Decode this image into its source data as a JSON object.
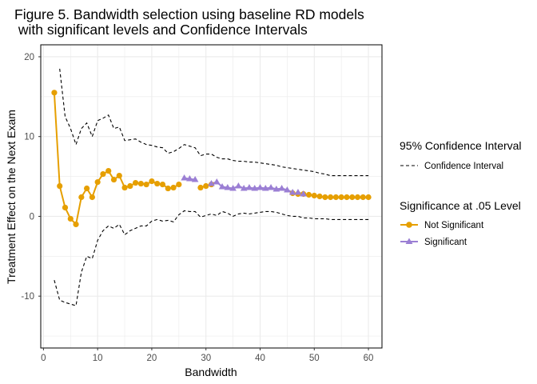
{
  "chart_data": {
    "type": "line",
    "title_line1": "Figure 5. Bandwidth selection using baseline RD models",
    "title_line2": " with significant levels and Confidence Intervals",
    "xlabel": "Bandwidth",
    "ylabel": "Treatment Effect on the Next Exam",
    "xlim": [
      -0.5,
      62.5
    ],
    "ylim": [
      -16.5,
      21.5
    ],
    "x_ticks": [
      0,
      10,
      20,
      30,
      40,
      50,
      60
    ],
    "y_ticks": [
      -10,
      0,
      10,
      20
    ],
    "grid": true,
    "legend_position": "right",
    "legend": {
      "ci_title": "95% Confidence Interval",
      "ci_label": "Confidence Interval",
      "sig_title": "Significance at .05 Level",
      "not_sig_label": "Not Significant",
      "sig_label": "Significant"
    },
    "colors": {
      "not_significant": "#E69F00",
      "significant": "#9B7FD4",
      "ci": "#000000",
      "grid": "#EBEBEB"
    },
    "ci_upper": {
      "x": [
        3,
        4,
        5,
        6,
        7,
        8,
        9,
        10,
        11,
        12,
        13,
        14,
        15,
        16,
        17,
        18,
        19,
        20,
        21,
        22,
        23,
        24,
        25,
        26,
        27,
        28,
        29,
        30,
        31,
        32,
        33,
        34,
        35,
        36,
        37,
        38,
        39,
        40,
        41,
        42,
        43,
        44,
        45,
        46,
        47,
        48,
        49,
        50,
        51,
        52,
        53,
        54,
        55,
        56,
        57,
        58,
        59,
        60
      ],
      "y": [
        18.5,
        12.5,
        11.0,
        9.0,
        11.0,
        11.7,
        10.0,
        12.0,
        12.3,
        12.7,
        11.0,
        11.2,
        9.5,
        9.6,
        9.7,
        9.3,
        9.0,
        8.9,
        8.7,
        8.6,
        7.9,
        8.1,
        8.5,
        9.0,
        8.8,
        8.6,
        7.6,
        7.8,
        7.8,
        7.4,
        7.2,
        7.2,
        7.0,
        6.9,
        6.9,
        6.8,
        6.8,
        6.7,
        6.6,
        6.5,
        6.4,
        6.2,
        6.1,
        6.0,
        5.9,
        5.8,
        5.7,
        5.6,
        5.4,
        5.3,
        5.1,
        5.1,
        5.1,
        5.1,
        5.1,
        5.1,
        5.1,
        5.1
      ]
    },
    "ci_lower": {
      "x": [
        2,
        3,
        4,
        5,
        6,
        7,
        8,
        9,
        10,
        11,
        12,
        13,
        14,
        15,
        16,
        17,
        18,
        19,
        20,
        21,
        22,
        23,
        24,
        25,
        26,
        27,
        28,
        29,
        30,
        31,
        32,
        33,
        34,
        35,
        36,
        37,
        38,
        39,
        40,
        41,
        42,
        43,
        44,
        45,
        46,
        47,
        48,
        49,
        50,
        51,
        52,
        53,
        54,
        55,
        56,
        57,
        58,
        59,
        60
      ],
      "y": [
        -8.0,
        -10.5,
        -10.8,
        -11.0,
        -11.2,
        -7.0,
        -5.0,
        -5.3,
        -3.0,
        -1.8,
        -1.2,
        -1.5,
        -1.0,
        -2.3,
        -1.8,
        -1.5,
        -1.2,
        -1.2,
        -0.6,
        -0.4,
        -0.6,
        -0.5,
        -0.7,
        0.2,
        0.7,
        0.6,
        0.6,
        -0.1,
        0.1,
        0.3,
        0.1,
        0.6,
        0.4,
        0.0,
        0.3,
        0.4,
        0.3,
        0.4,
        0.5,
        0.6,
        0.6,
        0.5,
        0.3,
        0.1,
        0.0,
        0.0,
        -0.2,
        -0.2,
        -0.3,
        -0.3,
        -0.3,
        -0.4,
        -0.4,
        -0.4,
        -0.4,
        -0.4,
        -0.4,
        -0.4,
        -0.4
      ]
    },
    "not_significant_segments": [
      {
        "x": [
          2,
          3,
          4,
          5,
          6,
          7,
          8,
          9,
          10,
          11,
          12,
          13,
          14,
          15,
          16,
          17,
          18,
          19,
          20,
          21,
          22,
          23,
          24,
          25
        ],
        "y": [
          15.5,
          3.8,
          1.1,
          -0.3,
          -1.0,
          2.4,
          3.5,
          2.4,
          4.3,
          5.3,
          5.7,
          4.6,
          5.1,
          3.6,
          3.8,
          4.2,
          4.1,
          4.0,
          4.4,
          4.1,
          4.0,
          3.5,
          3.6,
          4.0
        ]
      },
      {
        "x": [
          29,
          30,
          31
        ],
        "y": [
          3.6,
          3.8,
          4.0
        ]
      },
      {
        "x": [
          46,
          47,
          48,
          49,
          50,
          51,
          52,
          53,
          54,
          55,
          56,
          57,
          58,
          59,
          60
        ],
        "y": [
          2.9,
          2.8,
          2.8,
          2.7,
          2.6,
          2.5,
          2.4,
          2.4,
          2.4,
          2.4,
          2.4,
          2.4,
          2.4,
          2.4,
          2.4
        ]
      }
    ],
    "significant_segments": [
      {
        "x": [
          26,
          27,
          28
        ],
        "y": [
          4.8,
          4.7,
          4.6
        ]
      },
      {
        "x": [
          31,
          32,
          33,
          34,
          35,
          36,
          37,
          38,
          39,
          40,
          41,
          42,
          43,
          44,
          45,
          46
        ],
        "y": [
          4.1,
          4.3,
          3.7,
          3.6,
          3.5,
          3.8,
          3.5,
          3.6,
          3.5,
          3.6,
          3.5,
          3.6,
          3.4,
          3.5,
          3.3,
          3.0
        ]
      },
      {
        "x": [
          47,
          48
        ],
        "y": [
          3.0,
          2.8
        ]
      }
    ]
  }
}
